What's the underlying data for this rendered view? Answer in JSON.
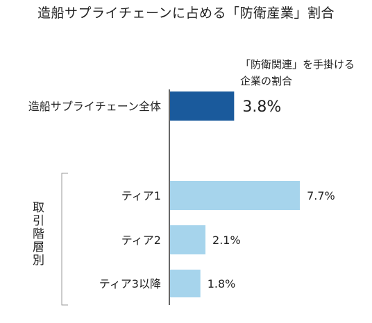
{
  "chart_data": {
    "type": "bar",
    "orientation": "horizontal",
    "title": "造船サプライチェーンに占める「防衛産業」割合",
    "annotation_line1": "「防衛関連」を手掛ける",
    "annotation_line2": "企業の割合",
    "group_label": "取引階層別",
    "categories": [
      "造船サプライチェーン全体",
      "ティア1",
      "ティア2",
      "ティア3以降"
    ],
    "values": [
      3.8,
      7.7,
      2.1,
      1.8
    ],
    "value_labels": [
      "3.8%",
      "7.7%",
      "2.1%",
      "1.8%"
    ],
    "unit": "%",
    "colors": [
      "#1a5a9c",
      "#a6d4ec",
      "#a6d4ec",
      "#a6d4ec"
    ],
    "xlim": [
      0,
      8.5
    ],
    "grid": false,
    "legend": "none"
  }
}
